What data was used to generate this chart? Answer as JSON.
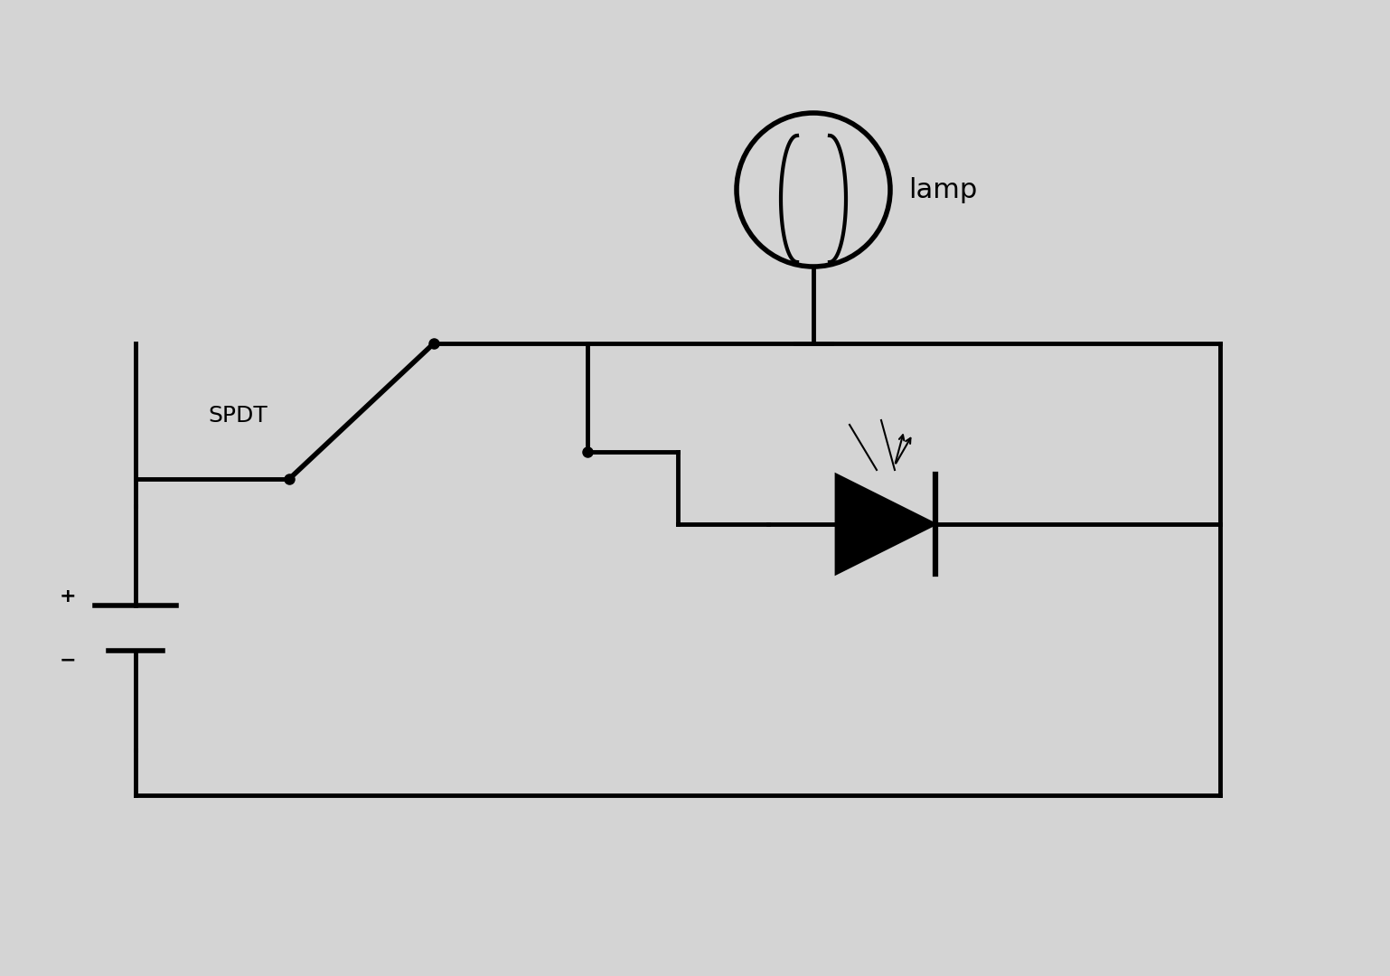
{
  "bg_color": "#d4d4d4",
  "line_color": "#000000",
  "line_width": 3.5,
  "title": "",
  "lamp_label": "lamp",
  "spdt_label": "SPDT",
  "fig_width": 15.38,
  "fig_height": 10.8,
  "dpi": 100
}
